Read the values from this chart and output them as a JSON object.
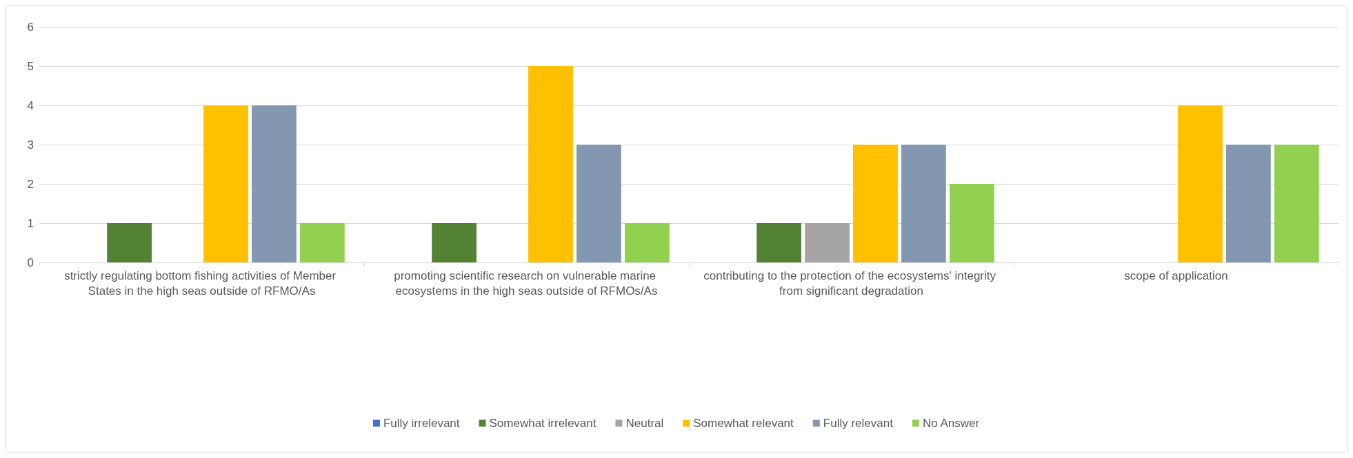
{
  "chart_data": {
    "type": "bar",
    "categories": [
      "strictly regulating bottom fishing activities of Member States in the high seas outside of RFMO/As",
      "promoting scientific research on vulnerable marine ecosystems in the high seas outside of RFMOs/As",
      "contributing to the protection of the ecosystems' integrity from significant degradation",
      "scope of application"
    ],
    "series": [
      {
        "name": "Fully irrelevant",
        "color": "#4472c4",
        "values": [
          0,
          0,
          0,
          0
        ]
      },
      {
        "name": "Somewhat irrelevant",
        "color": "#548235",
        "values": [
          1,
          1,
          1,
          0
        ]
      },
      {
        "name": "Neutral",
        "color": "#a5a5a5",
        "values": [
          0,
          0,
          1,
          0
        ]
      },
      {
        "name": "Somewhat relevant",
        "color": "#ffc000",
        "values": [
          4,
          5,
          3,
          4
        ]
      },
      {
        "name": "Fully relevant",
        "color": "#8497b0",
        "values": [
          4,
          3,
          3,
          3
        ]
      },
      {
        "name": "No Answer",
        "color": "#92d050",
        "values": [
          1,
          1,
          2,
          3
        ]
      }
    ],
    "ylim": [
      0,
      6
    ],
    "yticks": [
      0,
      1,
      2,
      3,
      4,
      5,
      6
    ],
    "grid": "y",
    "legend": "bottom"
  }
}
